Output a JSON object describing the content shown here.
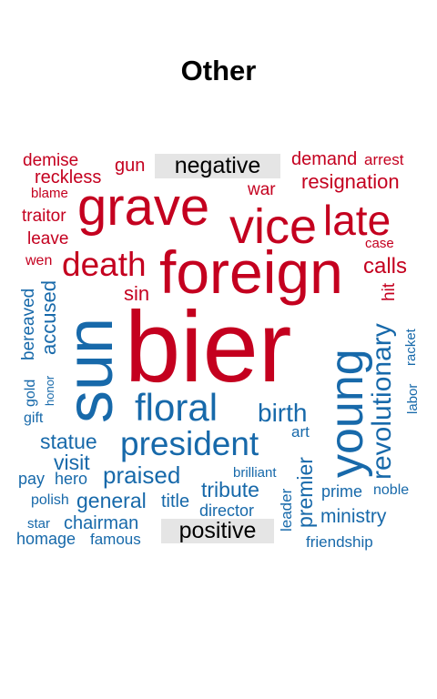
{
  "title": "Other",
  "colors": {
    "negative": "#C4001F",
    "positive": "#1769AA",
    "label_bg": "#E5E5E5"
  },
  "labels": {
    "negative": "negative",
    "positive": "positive"
  },
  "words": {
    "demise": "demise",
    "gun": "gun",
    "demand": "demand",
    "arrest": "arrest",
    "reckless": "reckless",
    "resignation": "resignation",
    "blame": "blame",
    "war": "war",
    "grave": "grave",
    "vice": "vice",
    "late": "late",
    "traitor": "traitor",
    "leave": "leave",
    "case": "case",
    "wen": "wen",
    "death": "death",
    "foreign": "foreign",
    "calls": "calls",
    "sin": "sin",
    "hit": "hit",
    "bereaved": "bereaved",
    "accused": "accused",
    "sun": "sun",
    "bier": "bier",
    "young": "young",
    "revolutionary": "revolutionary",
    "gold": "gold",
    "honor": "honor",
    "racket": "racket",
    "labor": "labor",
    "gift": "gift",
    "floral": "floral",
    "birth": "birth",
    "art": "art",
    "statue": "statue",
    "president": "president",
    "visit": "visit",
    "premier": "premier",
    "pay": "pay",
    "hero": "hero",
    "praised": "praised",
    "brilliant": "brilliant",
    "tribute": "tribute",
    "leader": "leader",
    "prime": "prime",
    "noble": "noble",
    "polish": "polish",
    "general": "general",
    "title": "title",
    "director": "director",
    "ministry": "ministry",
    "star": "star",
    "chairman": "chairman",
    "homage": "homage",
    "famous": "famous",
    "friendship": "friendship"
  }
}
